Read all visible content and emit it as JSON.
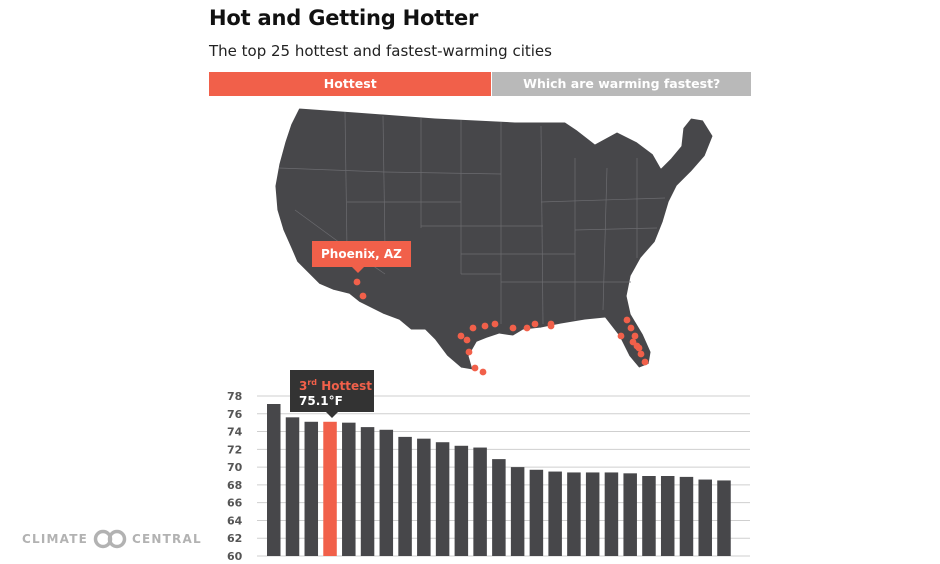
{
  "header": {
    "title": "Hot and Getting Hotter",
    "subtitle": "The top 25 hottest and fastest-warming cities"
  },
  "tabs": [
    {
      "label": "Hottest",
      "active": true
    },
    {
      "label": "Which are warming fastest?",
      "active": false
    }
  ],
  "map": {
    "highlighted_city": "Phoenix, AZ",
    "land_color": "#47474a",
    "marker_color": "#f1604a"
  },
  "tooltip": {
    "rank_number": "3",
    "rank_suffix": "rd",
    "rank_text": "Hottest",
    "value": "75.1°F"
  },
  "chart_data": {
    "type": "bar",
    "title": "",
    "xlabel": "",
    "ylabel": "",
    "ylim": [
      60,
      78
    ],
    "yticks": [
      60,
      62,
      64,
      66,
      68,
      70,
      72,
      74,
      76,
      78
    ],
    "grid": true,
    "highlight_index": 3,
    "bar_color": "#47474a",
    "highlight_color": "#f1604a",
    "values": [
      77.1,
      75.6,
      75.1,
      75.1,
      75.0,
      74.5,
      74.2,
      73.4,
      73.2,
      72.8,
      72.4,
      72.2,
      70.9,
      70.0,
      69.7,
      69.5,
      69.4,
      69.4,
      69.4,
      69.3,
      69.0,
      69.0,
      68.9,
      68.6,
      68.5
    ]
  },
  "brand": {
    "left_text": "CLIMATE",
    "right_text": "CENTRAL"
  }
}
